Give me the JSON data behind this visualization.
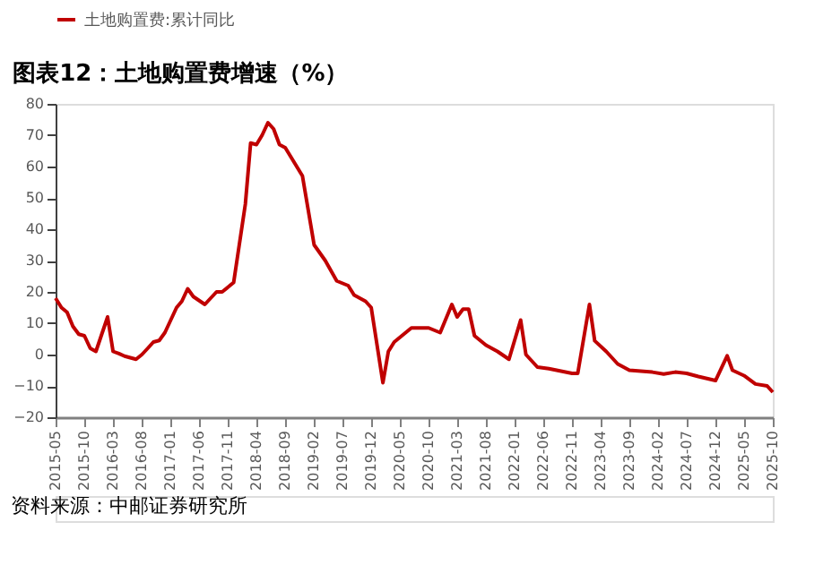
{
  "chart_data": {
    "type": "line",
    "title": "图表12：土地购置费增速（%）",
    "annotations": [
      "资料来源：中邮证券研究所"
    ],
    "x": [
      "2015-05",
      "2015-06",
      "2015-07",
      "2015-08",
      "2015-09",
      "2015-10",
      "2015-11",
      "2015-12",
      "2016-02",
      "2016-03",
      "2016-04",
      "2016-05",
      "2016-07",
      "2016-08",
      "2016-09",
      "2016-10",
      "2016-11",
      "2016-12",
      "2017-02",
      "2017-03",
      "2017-04",
      "2017-05",
      "2017-07",
      "2017-09",
      "2017-10",
      "2017-12",
      "2018-02",
      "2018-03",
      "2018-04",
      "2018-05",
      "2018-06",
      "2018-07",
      "2018-08",
      "2018-09",
      "2018-12",
      "2019-02",
      "2019-04",
      "2019-06",
      "2019-08",
      "2019-09",
      "2019-11",
      "2019-12",
      "2020-02",
      "2020-03",
      "2020-04",
      "2020-07",
      "2020-10",
      "2020-12",
      "2021-02",
      "2021-03",
      "2021-04",
      "2021-05",
      "2021-06",
      "2021-08",
      "2021-10",
      "2021-12",
      "2022-02",
      "2022-03",
      "2022-05",
      "2022-07",
      "2022-11",
      "2022-12",
      "2023-02",
      "2023-03",
      "2023-05",
      "2023-07",
      "2023-09",
      "2024-01",
      "2024-03",
      "2024-05",
      "2024-07",
      "2024-09",
      "2024-12",
      "2025-02",
      "2025-03",
      "2025-05",
      "2025-07",
      "2025-09",
      "2025-10"
    ],
    "series": [
      {
        "name": "土地购置费:累计同比",
        "color": "#c00000",
        "values": [
          18,
          15,
          13.5,
          9,
          6.5,
          6,
          2,
          1,
          12,
          1,
          0.3,
          -0.5,
          -1.5,
          0,
          2,
          4,
          4.5,
          7,
          15,
          17,
          21,
          18.5,
          16,
          20,
          20,
          23,
          48,
          67.5,
          67,
          70,
          74,
          72,
          67,
          66,
          57,
          35,
          30,
          23.5,
          22,
          19,
          17,
          15,
          -9,
          1,
          4,
          8.5,
          8.5,
          7,
          16,
          12,
          14.5,
          14.5,
          6,
          3,
          1,
          -1.5,
          11,
          0,
          -4,
          -4.5,
          -6,
          -6,
          16,
          4.4,
          1,
          -3,
          -5,
          -5.6,
          -6.2,
          -5.6,
          -6,
          -7,
          -8.3,
          -0.4,
          -5,
          -6.7,
          -9.4,
          -10,
          -12
        ]
      }
    ],
    "xlim": [
      "2015-05",
      "2025-10"
    ],
    "xticks": [
      "2015-05",
      "2015-10",
      "2016-03",
      "2016-08",
      "2017-01",
      "2017-06",
      "2017-11",
      "2018-04",
      "2018-09",
      "2019-02",
      "2019-07",
      "2019-12",
      "2020-05",
      "2020-10",
      "2021-03",
      "2021-08",
      "2022-01",
      "2022-06",
      "2022-11",
      "2023-04",
      "2023-09",
      "2024-02",
      "2024-07",
      "2024-12",
      "2025-05",
      "2025-10"
    ],
    "ylim": [
      -20,
      80
    ],
    "yticks": [
      -20,
      -10,
      0,
      10,
      20,
      30,
      40,
      50,
      60,
      70,
      80
    ],
    "grid": false,
    "legend": "top",
    "line_style": "solid",
    "marker": "none"
  }
}
